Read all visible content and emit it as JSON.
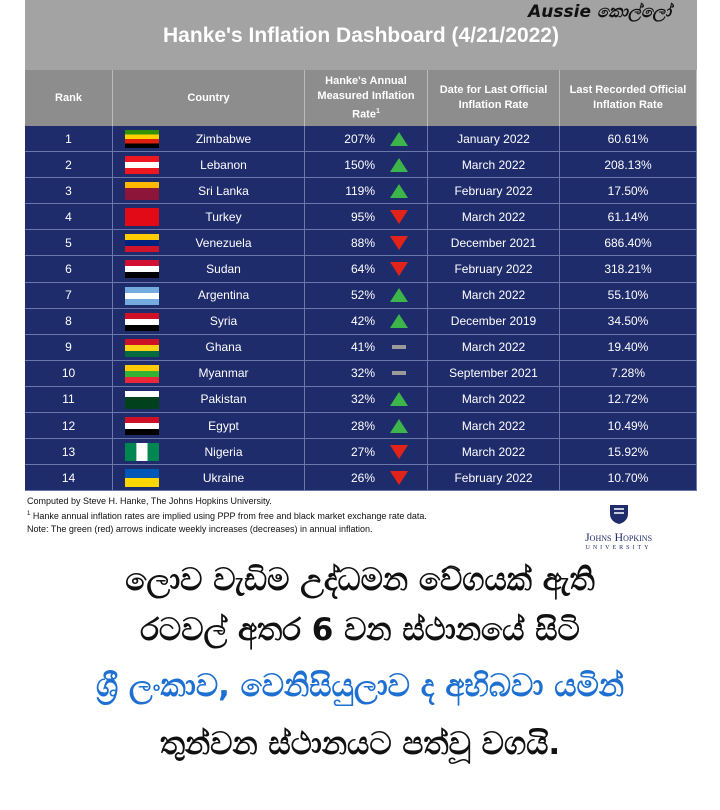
{
  "watermark": {
    "brand": "Aussie",
    "tag": "කොල්ලෝ"
  },
  "header": {
    "title": "Hanke's Inflation Dashboard (4/21/2022)"
  },
  "table": {
    "columns": [
      "Rank",
      "Country",
      "Hanke's Annual Measured Inflation Rate",
      "Date for Last Official Inflation Rate",
      "Last Recorded Official Inflation Rate"
    ],
    "note_mark": "1",
    "rows": [
      {
        "rank": 1,
        "country": "Zimbabwe",
        "hanke": "207%",
        "trend": "up",
        "date": "January 2022",
        "last": "60.61%"
      },
      {
        "rank": 2,
        "country": "Lebanon",
        "hanke": "150%",
        "trend": "up",
        "date": "March 2022",
        "last": "208.13%"
      },
      {
        "rank": 3,
        "country": "Sri Lanka",
        "hanke": "119%",
        "trend": "up",
        "date": "February 2022",
        "last": "17.50%"
      },
      {
        "rank": 4,
        "country": "Turkey",
        "hanke": "95%",
        "trend": "down",
        "date": "March 2022",
        "last": "61.14%"
      },
      {
        "rank": 5,
        "country": "Venezuela",
        "hanke": "88%",
        "trend": "down",
        "date": "December 2021",
        "last": "686.40%"
      },
      {
        "rank": 6,
        "country": "Sudan",
        "hanke": "64%",
        "trend": "down",
        "date": "February 2022",
        "last": "318.21%"
      },
      {
        "rank": 7,
        "country": "Argentina",
        "hanke": "52%",
        "trend": "up",
        "date": "March 2022",
        "last": "55.10%"
      },
      {
        "rank": 8,
        "country": "Syria",
        "hanke": "42%",
        "trend": "up",
        "date": "December 2019",
        "last": "34.50%"
      },
      {
        "rank": 9,
        "country": "Ghana",
        "hanke": "41%",
        "trend": "flat",
        "date": "March 2022",
        "last": "19.40%"
      },
      {
        "rank": 10,
        "country": "Myanmar",
        "hanke": "32%",
        "trend": "flat",
        "date": "September 2021",
        "last": "7.28%"
      },
      {
        "rank": 11,
        "country": "Pakistan",
        "hanke": "32%",
        "trend": "up",
        "date": "March 2022",
        "last": "12.72%"
      },
      {
        "rank": 12,
        "country": "Egypt",
        "hanke": "28%",
        "trend": "up",
        "date": "March 2022",
        "last": "10.49%"
      },
      {
        "rank": 13,
        "country": "Nigeria",
        "hanke": "27%",
        "trend": "down",
        "date": "March 2022",
        "last": "15.92%"
      },
      {
        "rank": 14,
        "country": "Ukraine",
        "hanke": "26%",
        "trend": "down",
        "date": "February 2022",
        "last": "10.70%"
      }
    ]
  },
  "notes": [
    "Computed by Steve H. Hanke, The Johns Hopkins University.",
    "Hanke annual inflation rates are implied using PPP from free and black market exchange rate data.",
    "Note: The green (red) arrows indicate weekly increases (decreases) in annual inflation."
  ],
  "logo": {
    "name": "Johns Hopkins",
    "sub": "UNIVERSITY"
  },
  "caption": [
    {
      "text": "ලොව වැඩිම උද්ධමන වේගයක් ඇති",
      "highlight": false
    },
    {
      "text": "රටවල් අතර 6 වන ස්ථානයේ සිටි",
      "highlight": false
    },
    {
      "text": "ශ්‍රී ලංකාව, වෙනිසියුලාව ද අභිබවා යමින්",
      "highlight": true
    },
    {
      "text": "තුන්වන ස්ථානයට පත්වූ වගයි.",
      "highlight": false
    }
  ]
}
